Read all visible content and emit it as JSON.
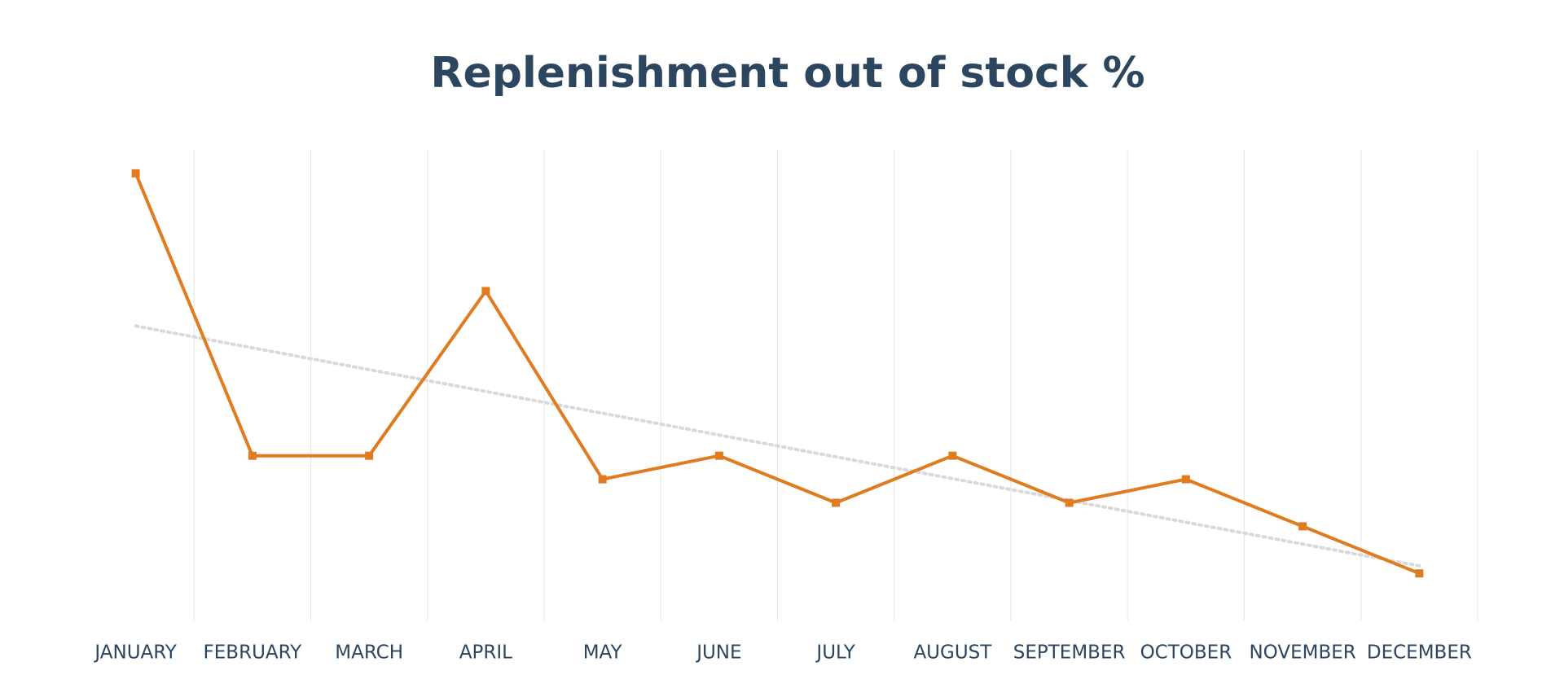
{
  "chart_data": {
    "type": "line",
    "title": "Replenishment out of stock %",
    "categories": [
      "JANUARY",
      "FEBRUARY",
      "MARCH",
      "APRIL",
      "MAY",
      "JUNE",
      "JULY",
      "AUGUST",
      "SEPTEMBER",
      "OCTOBER",
      "NOVEMBER",
      "DECEMBER"
    ],
    "series": [
      {
        "name": "Replenishment out of stock %",
        "color": "#e07b20",
        "values": [
          19,
          7,
          7,
          14,
          6,
          7,
          5,
          7,
          5,
          6,
          4,
          2
        ]
      }
    ],
    "ylim": [
      0,
      20
    ],
    "trendline": "linear",
    "trendline_color": "#d9d9d9",
    "grid": true
  }
}
